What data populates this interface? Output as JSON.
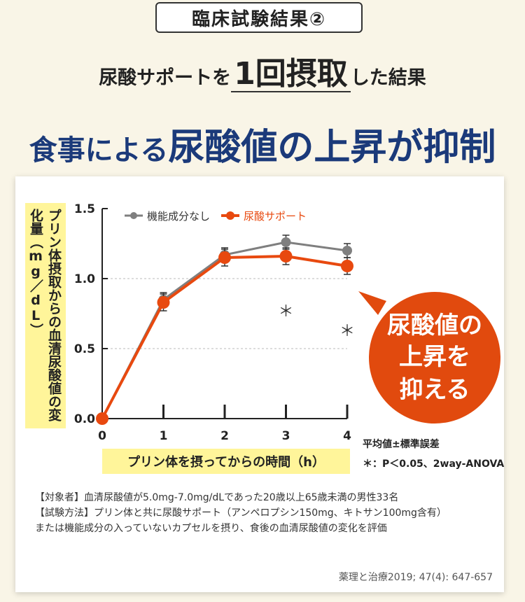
{
  "badge": "臨床試験結果②",
  "subhead": {
    "pre": "尿酸サポートを",
    "big": "1回摂取",
    "post": "した結果"
  },
  "headline": {
    "pre": "食事による",
    "big": "尿酸値の上昇が抑制"
  },
  "callout": {
    "line1": "尿酸値の",
    "line2": "上昇を",
    "line3": "抑える"
  },
  "stats": {
    "mean_sem": "平均値±標準誤差",
    "significance": "＊：P＜0.05、2way-ANOVA"
  },
  "notes": [
    "【対象者】血清尿酸値が5.0mg-7.0mg/dLであった20歳以上65歳未満の男性33名",
    "【試験方法】プリン体と共に尿酸サポート（アンペロプシン150mg、キトサン100mg含有）",
    "または機能成分の入っていないカプセルを摂り、食後の血清尿酸値の変化を評価"
  ],
  "citation": "薬理と治療2019; 47(4): 647-657",
  "colors": {
    "control": "#7f7f7f",
    "supplement": "#e8490f",
    "headline": "#1b3a7a",
    "highlight": "#fff59a"
  },
  "chart_data": {
    "type": "line",
    "x": [
      0,
      1,
      2,
      3,
      4
    ],
    "x_tick_labels": [
      "0",
      "1",
      "2",
      "3",
      "4"
    ],
    "y_tick_labels": [
      "0.0",
      "0.5",
      "1.0",
      "1.5"
    ],
    "ylim": [
      0,
      1.5
    ],
    "xlim": [
      0,
      4
    ],
    "xlabel": "プリン体を摂ってからの時間（h）",
    "ylabel": "プリン体摂取からの血清尿酸値の変化量（mg／dL）",
    "legend_position": "top",
    "grid": "dashed horizontal at 0.5 and 1.0",
    "series": [
      {
        "name": "機能成分なし",
        "values": [
          0.0,
          0.85,
          1.17,
          1.26,
          1.2
        ],
        "errors": [
          0.0,
          0.05,
          0.05,
          0.05,
          0.05
        ]
      },
      {
        "name": "尿酸サポート",
        "values": [
          0.0,
          0.83,
          1.15,
          1.16,
          1.09
        ],
        "errors": [
          0.0,
          0.06,
          0.06,
          0.06,
          0.06
        ]
      }
    ],
    "significance_markers": [
      {
        "x": 3,
        "label": "＊"
      },
      {
        "x": 4,
        "label": "＊"
      }
    ]
  }
}
